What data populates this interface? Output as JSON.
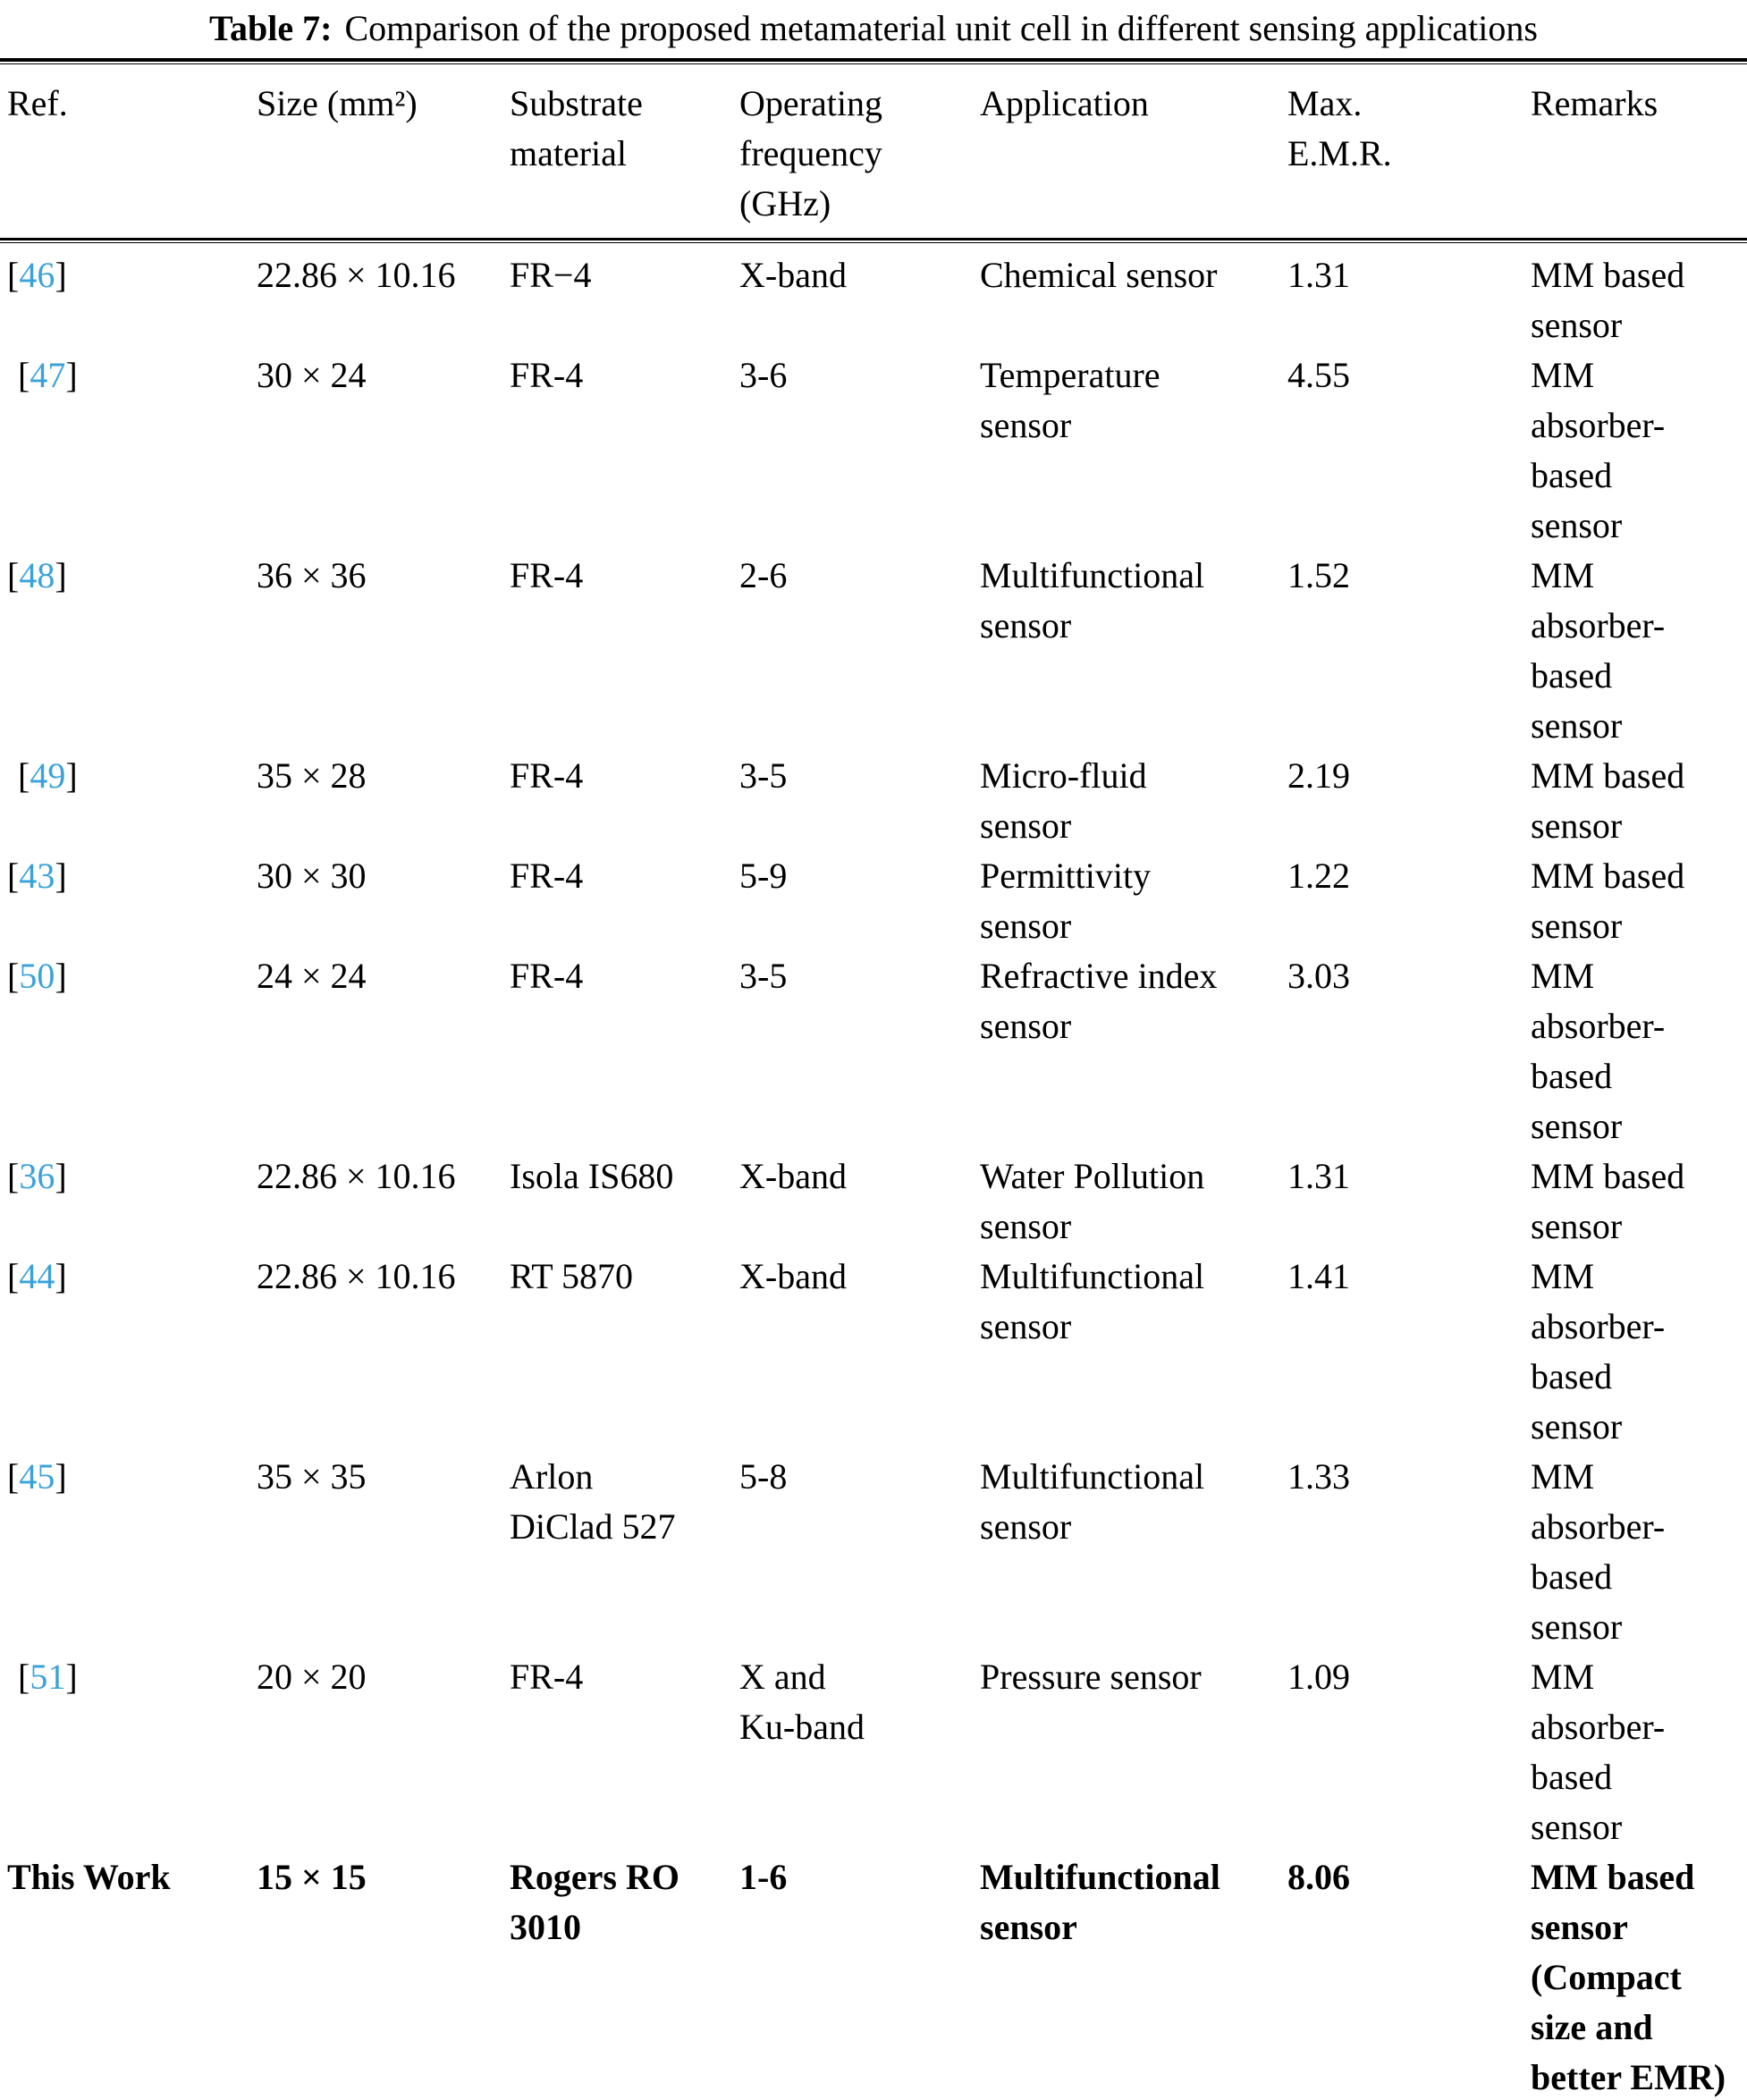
{
  "caption": {
    "label": "Table 7:",
    "text": "Comparison of the proposed metamaterial unit cell in different sensing applications"
  },
  "colors": {
    "citation_link": "#3aa2da",
    "text": "#000000",
    "background": "#ffffff"
  },
  "table": {
    "bracket_open": "[",
    "bracket_close": "]",
    "columns": [
      "Ref.",
      "Size (mm²)",
      "Substrate\nmaterial",
      "Operating\nfrequency\n(GHz)",
      "Application",
      "Max.\nE.M.R.",
      "Remarks"
    ],
    "rows": [
      {
        "ref": "46",
        "citation": true,
        "indent": false,
        "bold": false,
        "size": "22.86 × 10.16",
        "substrate": "FR−4",
        "frequency": "X-band",
        "application": "Chemical sensor",
        "max_emr": "1.31",
        "remarks": "MM based\nsensor"
      },
      {
        "ref": "47",
        "citation": true,
        "indent": true,
        "bold": false,
        "size": "30 × 24",
        "substrate": "FR-4",
        "frequency": "3-6",
        "application": "Temperature\nsensor",
        "max_emr": "4.55",
        "remarks": "MM\nabsorber-\nbased\nsensor"
      },
      {
        "ref": "48",
        "citation": true,
        "indent": false,
        "bold": false,
        "size": "36 × 36",
        "substrate": "FR-4",
        "frequency": "2-6",
        "application": "Multifunctional\nsensor",
        "max_emr": "1.52",
        "remarks": "MM\nabsorber-\nbased\nsensor"
      },
      {
        "ref": "49",
        "citation": true,
        "indent": true,
        "bold": false,
        "size": "35 × 28",
        "substrate": "FR-4",
        "frequency": "3-5",
        "application": "Micro-fluid\nsensor",
        "max_emr": "2.19",
        "remarks": "MM based\nsensor"
      },
      {
        "ref": "43",
        "citation": true,
        "indent": false,
        "bold": false,
        "size": "30 × 30",
        "substrate": "FR-4",
        "frequency": "5-9",
        "application": "Permittivity\nsensor",
        "max_emr": "1.22",
        "remarks": "MM based\nsensor"
      },
      {
        "ref": "50",
        "citation": true,
        "indent": false,
        "bold": false,
        "size": "24 × 24",
        "substrate": "FR-4",
        "frequency": "3-5",
        "application": "Refractive index\nsensor",
        "max_emr": "3.03",
        "remarks": "MM\nabsorber-\nbased\nsensor"
      },
      {
        "ref": "36",
        "citation": true,
        "indent": false,
        "bold": false,
        "size": "22.86 × 10.16",
        "substrate": "Isola IS680",
        "frequency": "X-band",
        "application": "Water Pollution\nsensor",
        "max_emr": "1.31",
        "remarks": "MM based\nsensor"
      },
      {
        "ref": "44",
        "citation": true,
        "indent": false,
        "bold": false,
        "size": "22.86 × 10.16",
        "substrate": "RT 5870",
        "frequency": "X-band",
        "application": "Multifunctional\nsensor",
        "max_emr": "1.41",
        "remarks": "MM\nabsorber-\nbased\nsensor"
      },
      {
        "ref": "45",
        "citation": true,
        "indent": false,
        "bold": false,
        "size": "35 × 35",
        "substrate": "Arlon\nDiClad 527",
        "frequency": "5-8",
        "application": "Multifunctional\nsensor",
        "max_emr": "1.33",
        "remarks": "MM\nabsorber-\nbased\nsensor"
      },
      {
        "ref": "51",
        "citation": true,
        "indent": true,
        "bold": false,
        "size": "20 × 20",
        "substrate": "FR-4",
        "frequency": "X and\nKu-band",
        "application": "Pressure sensor",
        "max_emr": "1.09",
        "remarks": "MM\nabsorber-\nbased\nsensor"
      },
      {
        "ref": "This Work",
        "citation": false,
        "indent": false,
        "bold": true,
        "size": "15 × 15",
        "substrate": "Rogers RO\n3010",
        "frequency": "1-6",
        "application": "Multifunctional\nsensor",
        "max_emr": "8.06",
        "remarks": "MM based\nsensor\n(Compact\nsize and\nbetter EMR)"
      }
    ]
  }
}
